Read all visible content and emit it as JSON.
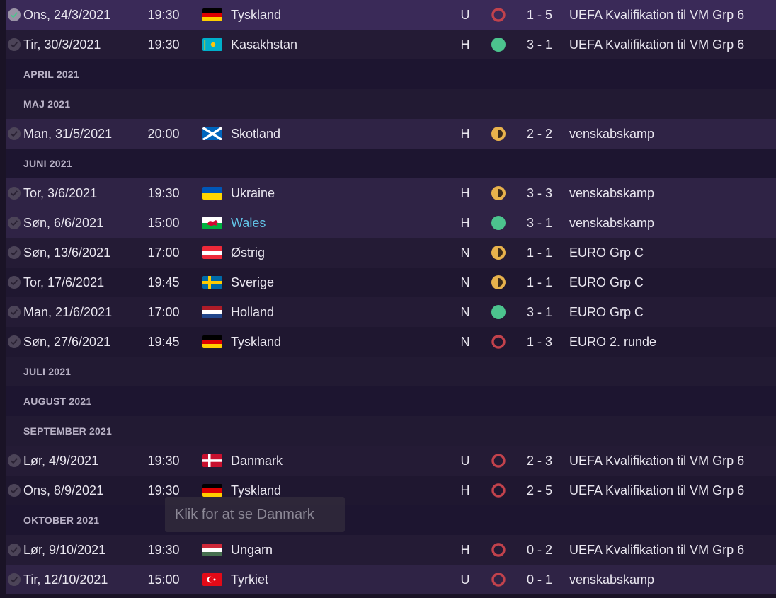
{
  "colors": {
    "win": "#4cc48e",
    "draw": "#e8b24c",
    "loss": "#c2424c"
  },
  "rows": [
    {
      "type": "match",
      "date": "Ons, 24/3/2021",
      "time": "19:30",
      "flag": "germany",
      "team": "Tyskland",
      "venue": "U",
      "result": "loss",
      "score": "1 - 5",
      "competition": "UEFA Kvalifikation til VM Grp 6",
      "checked": true
    },
    {
      "type": "match",
      "date": "Tir, 30/3/2021",
      "time": "19:30",
      "flag": "kazakhstan",
      "team": "Kasakhstan",
      "venue": "H",
      "result": "win",
      "score": "3 - 1",
      "competition": "UEFA Kvalifikation til VM Grp 6"
    },
    {
      "type": "section",
      "label": "APRIL 2021"
    },
    {
      "type": "section",
      "label": "MAJ 2021"
    },
    {
      "type": "match",
      "date": "Man, 31/5/2021",
      "time": "20:00",
      "flag": "scotland",
      "team": "Skotland",
      "venue": "H",
      "result": "draw",
      "score": "2 - 2",
      "competition": "venskabskamp"
    },
    {
      "type": "section",
      "label": "JUNI 2021"
    },
    {
      "type": "match",
      "date": "Tor, 3/6/2021",
      "time": "19:30",
      "flag": "ukraine",
      "team": "Ukraine",
      "venue": "H",
      "result": "draw",
      "score": "3 - 3",
      "competition": "venskabskamp"
    },
    {
      "type": "match",
      "date": "Søn, 6/6/2021",
      "time": "15:00",
      "flag": "wales",
      "team": "Wales",
      "venue": "H",
      "result": "win",
      "score": "3 - 1",
      "competition": "venskabskamp"
    },
    {
      "type": "match",
      "date": "Søn, 13/6/2021",
      "time": "17:00",
      "flag": "austria",
      "team": "Østrig",
      "venue": "N",
      "result": "draw",
      "score": "1 - 1",
      "competition": "EURO Grp C"
    },
    {
      "type": "match",
      "date": "Tor, 17/6/2021",
      "time": "19:45",
      "flag": "sweden",
      "team": "Sverige",
      "venue": "N",
      "result": "draw",
      "score": "1 - 1",
      "competition": "EURO Grp C"
    },
    {
      "type": "match",
      "date": "Man, 21/6/2021",
      "time": "17:00",
      "flag": "netherlands",
      "team": "Holland",
      "venue": "N",
      "result": "win",
      "score": "3 - 1",
      "competition": "EURO Grp C"
    },
    {
      "type": "match",
      "date": "Søn, 27/6/2021",
      "time": "19:45",
      "flag": "germany",
      "team": "Tyskland",
      "venue": "N",
      "result": "loss",
      "score": "1 - 3",
      "competition": "EURO 2. runde"
    },
    {
      "type": "section",
      "label": "JULI 2021"
    },
    {
      "type": "section",
      "label": "AUGUST 2021"
    },
    {
      "type": "section",
      "label": "SEPTEMBER 2021"
    },
    {
      "type": "match",
      "date": "Lør, 4/9/2021",
      "time": "19:30",
      "flag": "denmark",
      "team": "Danmark",
      "venue": "U",
      "result": "loss",
      "score": "2 - 3",
      "competition": "UEFA Kvalifikation til VM Grp 6"
    },
    {
      "type": "match",
      "date": "Ons, 8/9/2021",
      "time": "19:30",
      "flag": "germany",
      "team": "Tyskland",
      "venue": "H",
      "result": "loss",
      "score": "2 - 5",
      "competition": "UEFA Kvalifikation til VM Grp 6"
    },
    {
      "type": "section",
      "label": "OKTOBER 2021"
    },
    {
      "type": "match",
      "date": "Lør, 9/10/2021",
      "time": "19:30",
      "flag": "hungary",
      "team": "Ungarn",
      "venue": "H",
      "result": "loss",
      "score": "0 - 2",
      "competition": "UEFA Kvalifikation til VM Grp 6"
    },
    {
      "type": "match",
      "date": "Tir, 12/10/2021",
      "time": "15:00",
      "flag": "turkey",
      "team": "Tyrkiet",
      "venue": "U",
      "result": "loss",
      "score": "0 - 1",
      "competition": "venskabskamp"
    }
  ],
  "tooltip": "Klik for at se Danmark"
}
